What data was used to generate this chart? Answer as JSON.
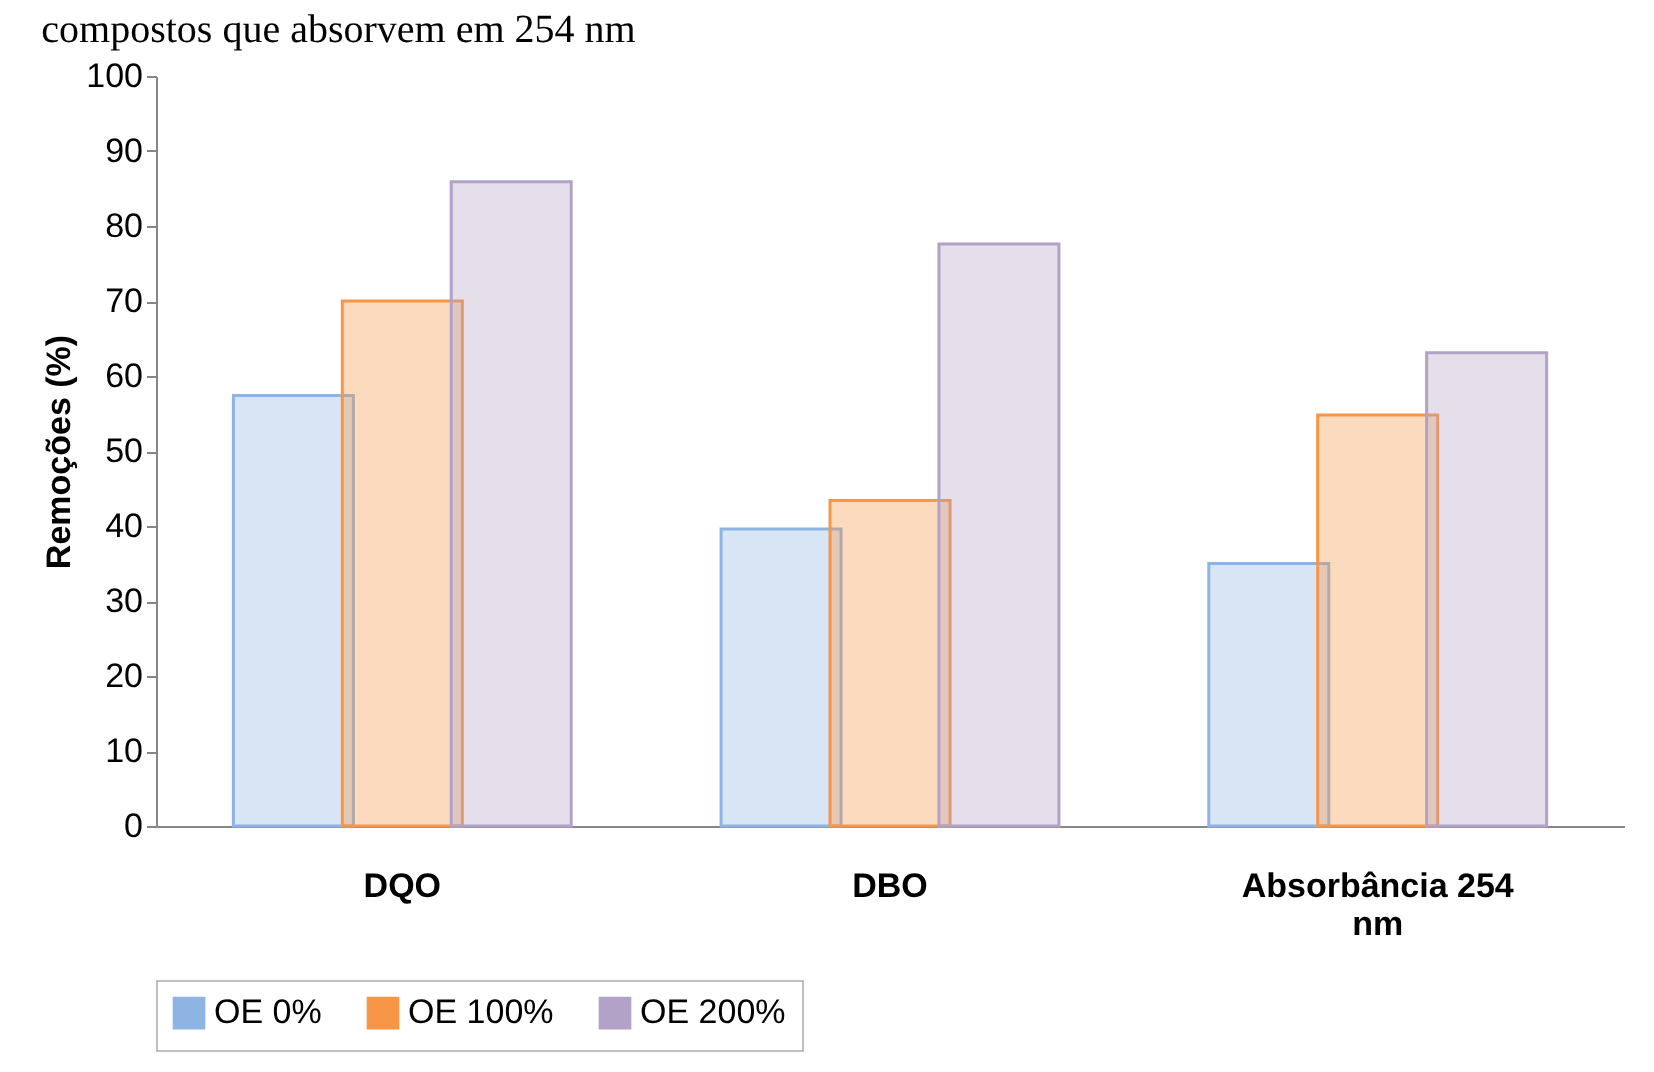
{
  "chart_data": {
    "type": "bar",
    "ylabel": "Remoções (%)",
    "annotations": [
      "compostos que absorvem em 254 nm"
    ],
    "categories": [
      "DQO",
      "DBO",
      "Absorbância 254 nm"
    ],
    "series": [
      {
        "name": "OE 0%",
        "color": "#8eb4e3",
        "values": [
          57.4,
          39.6,
          35.0
        ]
      },
      {
        "name": "OE 100%",
        "color": "#f79646",
        "values": [
          70.0,
          43.4,
          54.8
        ]
      },
      {
        "name": "OE 200%",
        "color": "#b3a2c7",
        "values": [
          85.9,
          77.6,
          63.1
        ]
      }
    ],
    "ylim": [
      0,
      100
    ],
    "yticks": [
      0,
      10,
      20,
      30,
      40,
      50,
      60,
      70,
      80,
      90,
      100
    ],
    "grid": false,
    "legend": "bottom"
  }
}
